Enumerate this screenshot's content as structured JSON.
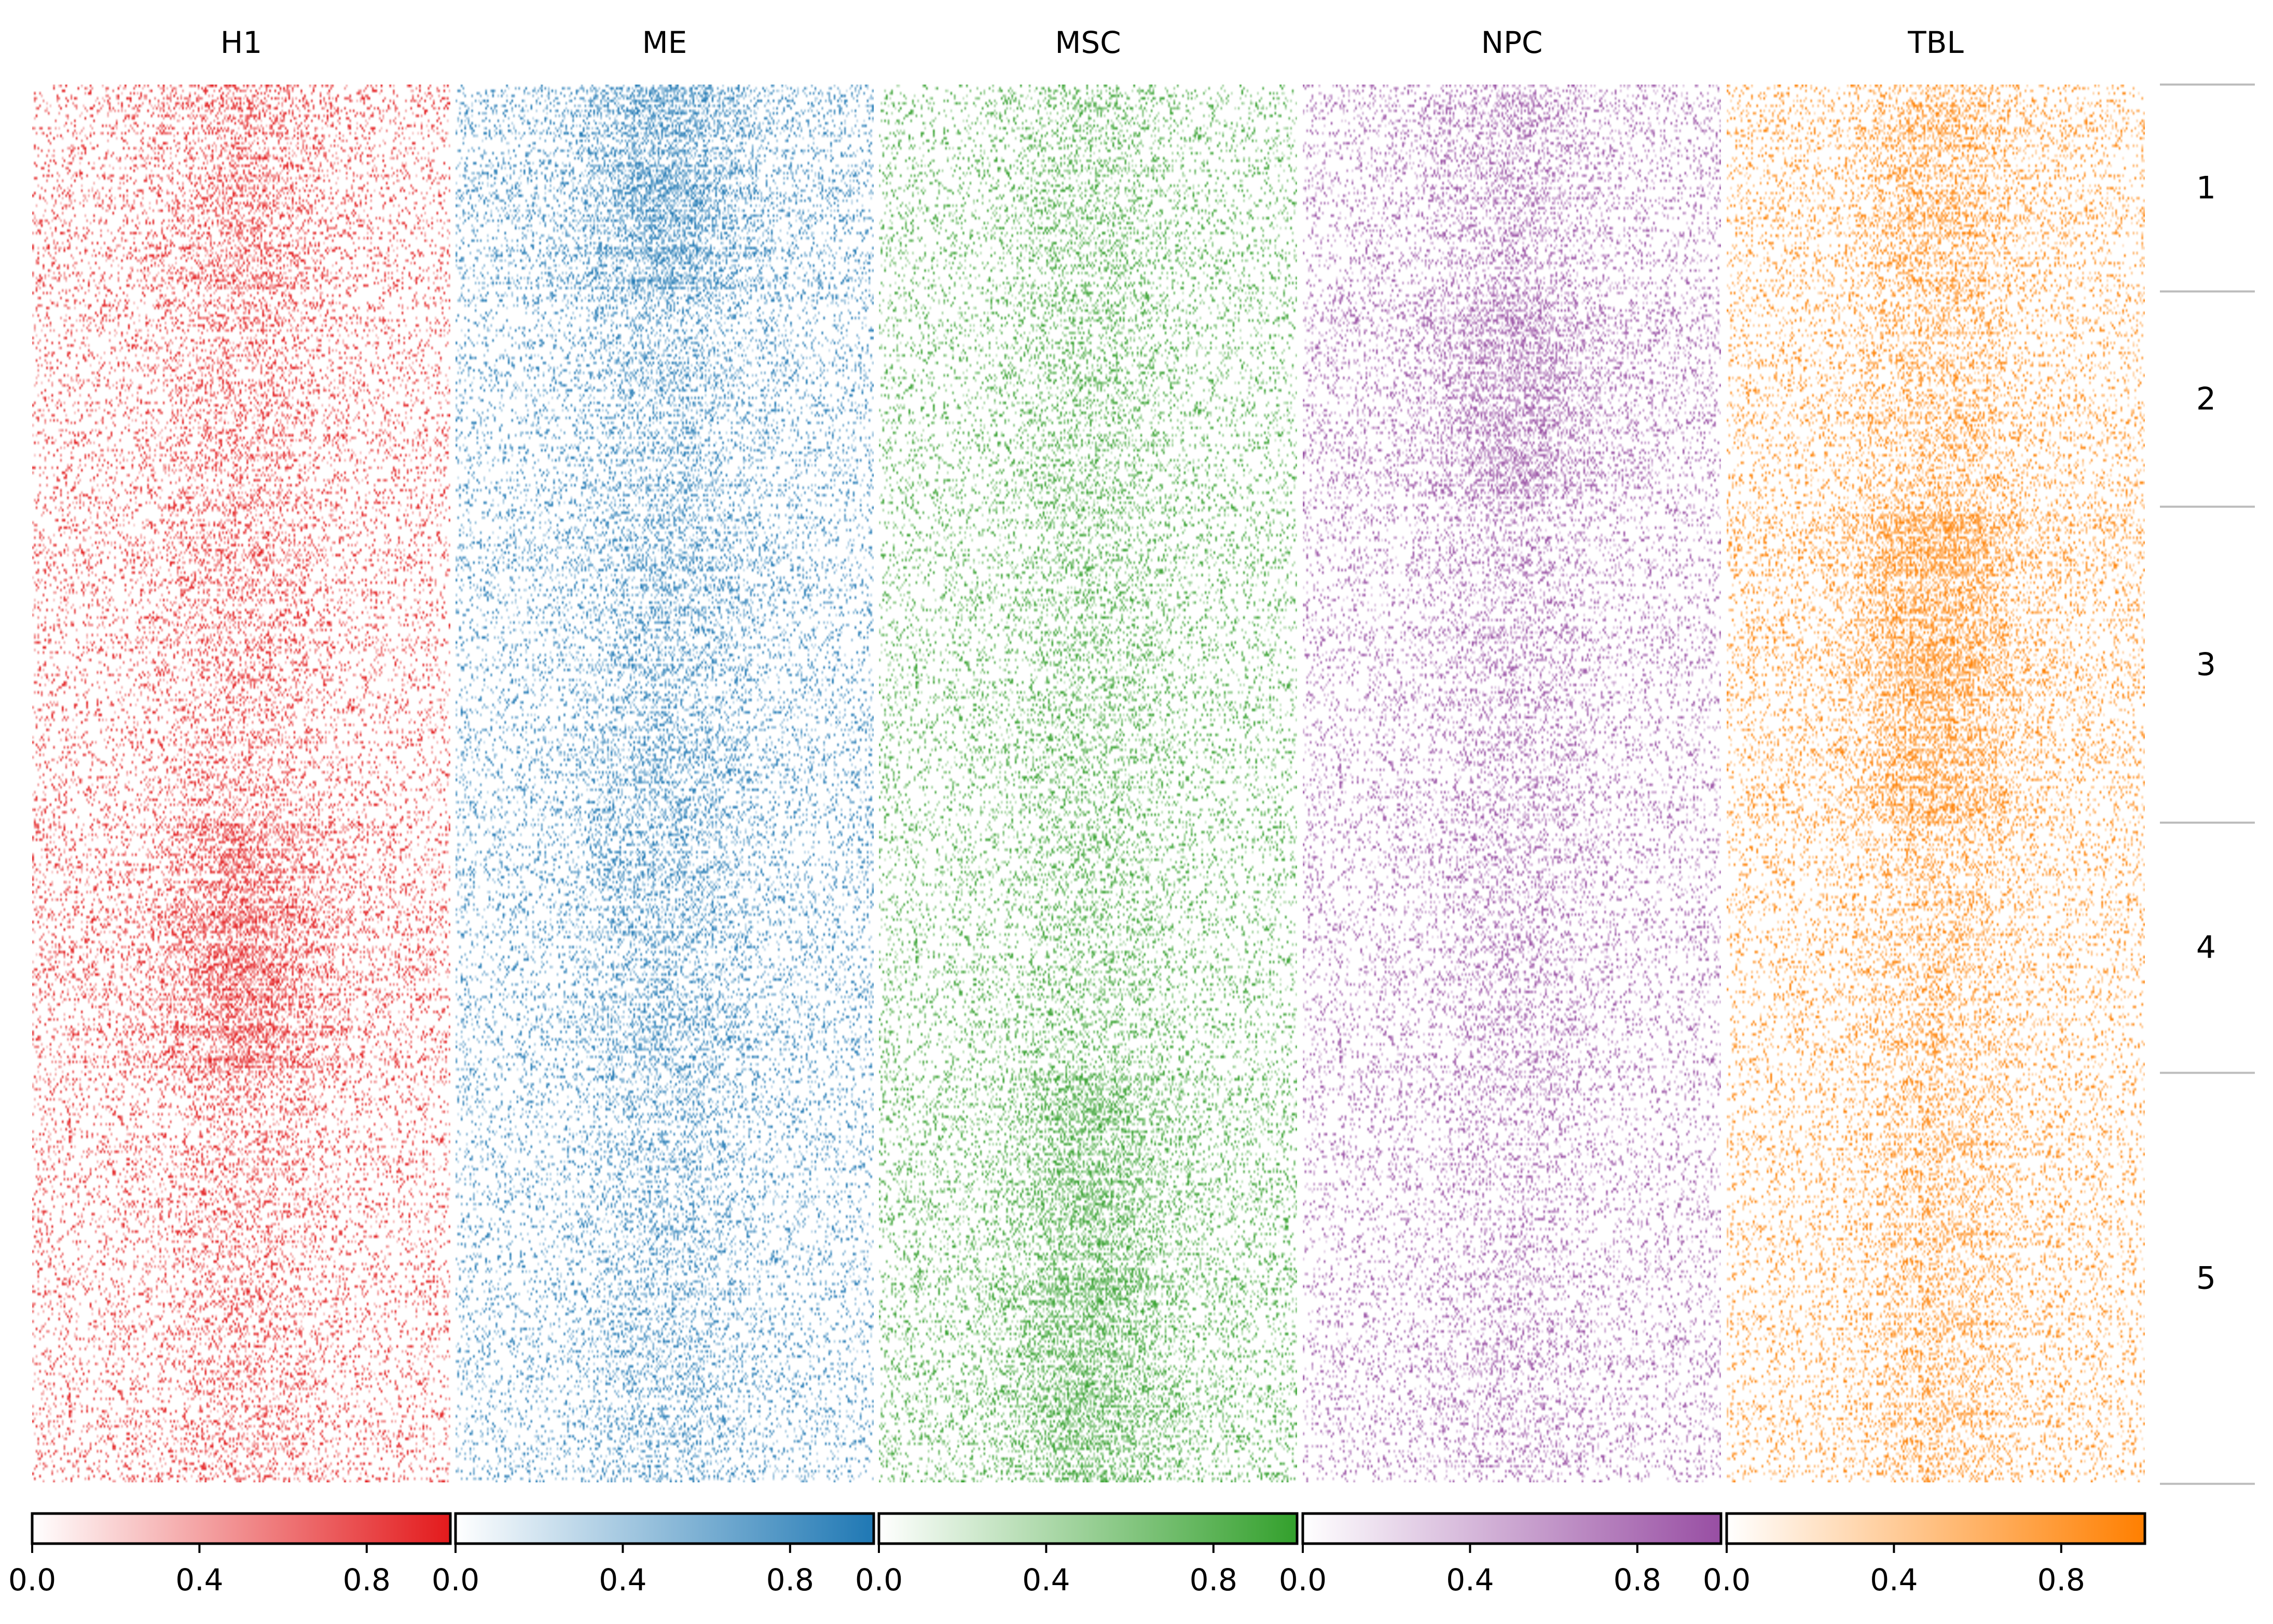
{
  "chart_data": {
    "type": "heatmap",
    "title": "",
    "panels": [
      {
        "name": "H1",
        "color": "#e31a1c",
        "cluster_peak": [
          0.45,
          0.3,
          0.3,
          0.75,
          0.25
        ]
      },
      {
        "name": "ME",
        "color": "#1f78b4",
        "cluster_peak": [
          0.75,
          0.35,
          0.4,
          0.4,
          0.3
        ]
      },
      {
        "name": "MSC",
        "color": "#33a02c",
        "cluster_peak": [
          0.3,
          0.3,
          0.25,
          0.25,
          0.7
        ]
      },
      {
        "name": "NPC",
        "color": "#984ea3",
        "cluster_peak": [
          0.35,
          0.6,
          0.25,
          0.25,
          0.2
        ]
      },
      {
        "name": "TBL",
        "color": "#ff7f00",
        "cluster_peak": [
          0.45,
          0.35,
          0.8,
          0.35,
          0.35
        ]
      }
    ],
    "clusters": [
      {
        "label": "1",
        "fraction": 0.148
      },
      {
        "label": "2",
        "fraction": 0.154
      },
      {
        "label": "3",
        "fraction": 0.226
      },
      {
        "label": "4",
        "fraction": 0.179
      },
      {
        "label": "5",
        "fraction": 0.294
      }
    ],
    "colorbar": {
      "range": [
        0,
        1
      ],
      "ticks": [
        0.0,
        0.4,
        0.8
      ],
      "tick_labels": [
        "0.0",
        "0.4",
        "0.8"
      ]
    }
  }
}
